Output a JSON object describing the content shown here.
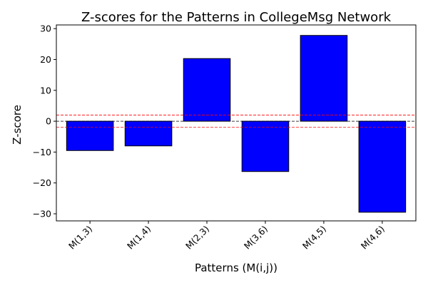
{
  "chart_data": {
    "type": "bar",
    "title": "Z-scores for the Patterns in CollegeMsg Network",
    "xlabel": "Patterns (M(i,j))",
    "ylabel": "Z-score",
    "categories": [
      "M(1,3)",
      "M(1,4)",
      "M(2,3)",
      "M(3,6)",
      "M(4,5)",
      "M(4,6)"
    ],
    "values": [
      -9.5,
      -8.0,
      20.3,
      -16.3,
      27.8,
      -29.5
    ],
    "ylim": [
      -32.3,
      31.2
    ],
    "yticks": [
      -30,
      -20,
      -10,
      0,
      10,
      20,
      30
    ],
    "grid": false,
    "bar_color": "#0000ff",
    "reference_lines": [
      {
        "y": 0,
        "color": "#000000",
        "style": "dashed"
      },
      {
        "y": 2,
        "color": "#ff0000",
        "style": "dashed"
      },
      {
        "y": -2,
        "color": "#ff0000",
        "style": "dashed"
      }
    ]
  }
}
